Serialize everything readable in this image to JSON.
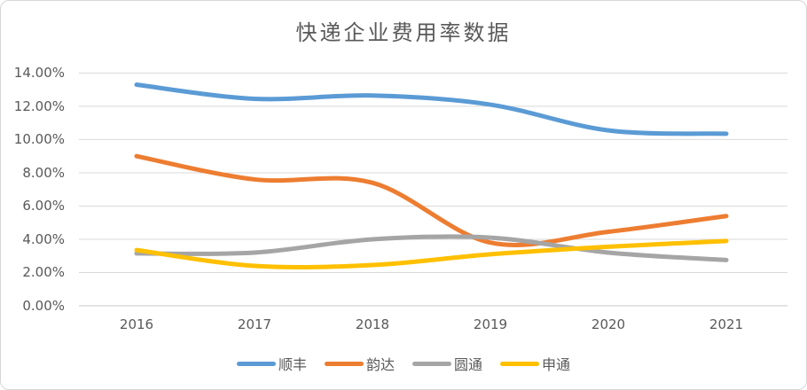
{
  "chart_data": {
    "type": "line",
    "title": "快递企业费用率数据",
    "categories": [
      "2016",
      "2017",
      "2018",
      "2019",
      "2020",
      "2021"
    ],
    "series": [
      {
        "key": "shunfeng",
        "name": "顺丰",
        "color": "#5B9BD5",
        "values": [
          13.3,
          12.45,
          12.65,
          12.1,
          10.55,
          10.35
        ]
      },
      {
        "key": "yunda",
        "name": "韵达",
        "color": "#ED7D31",
        "values": [
          9.0,
          7.6,
          7.4,
          3.8,
          4.45,
          5.4
        ]
      },
      {
        "key": "yuantong",
        "name": "圆通",
        "color": "#A5A5A5",
        "values": [
          3.15,
          3.2,
          4.0,
          4.1,
          3.2,
          2.75
        ]
      },
      {
        "key": "shentong",
        "name": "申通",
        "color": "#FFC000",
        "values": [
          3.35,
          2.4,
          2.45,
          3.1,
          3.55,
          3.9
        ]
      }
    ],
    "yticks": [
      "14.00%",
      "12.00%",
      "10.00%",
      "8.00%",
      "6.00%",
      "4.00%",
      "2.00%",
      "0.00%"
    ],
    "ylim": [
      0,
      14
    ],
    "ytick_step": 2,
    "xlabel": "",
    "ylabel": "",
    "grid": true,
    "smooth": true,
    "legend_position": "bottom",
    "gridline_color": "#D9D9D9",
    "axisline_color": "#C9C9C9",
    "text_color": "#595959"
  }
}
